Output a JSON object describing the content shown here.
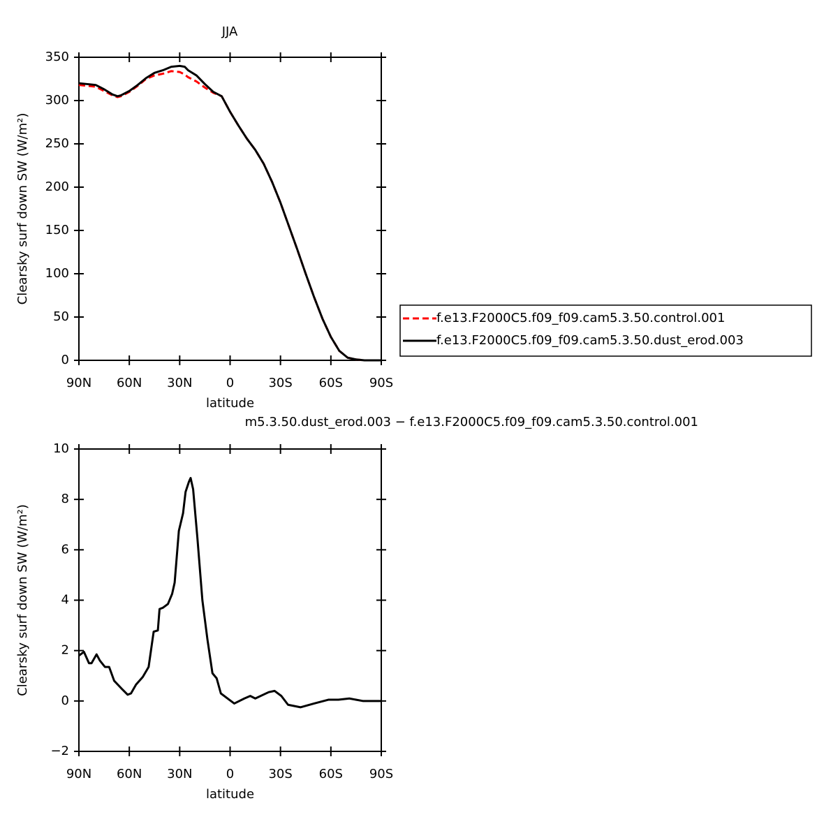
{
  "chart_data": [
    {
      "type": "line",
      "title": "JJA",
      "x_label": "latitude",
      "y_label": "Clearsky surf down SW (W/m²)",
      "x": [
        90,
        85,
        80,
        75,
        70,
        67,
        65,
        60,
        55,
        50,
        45,
        40,
        35,
        30,
        27,
        25,
        20,
        15,
        10,
        5,
        0,
        -5,
        -10,
        -15,
        -20,
        -25,
        -30,
        -35,
        -40,
        -45,
        -50,
        -55,
        -60,
        -65,
        -70,
        -75,
        -80,
        -85,
        -90
      ],
      "xlim": [
        90,
        -90
      ],
      "xticks": [
        {
          "value": 90,
          "label": "90N"
        },
        {
          "value": 60,
          "label": "60N"
        },
        {
          "value": 30,
          "label": "30N"
        },
        0,
        {
          "value": -30,
          "label": "30S"
        },
        {
          "value": -60,
          "label": "60S"
        },
        {
          "value": -90,
          "label": "90S"
        }
      ],
      "ylim": [
        0,
        350
      ],
      "yticks": [
        0,
        50,
        100,
        150,
        200,
        250,
        300,
        350
      ],
      "legend": "right",
      "series": [
        {
          "name": "f.e13.F2000C5.f09_f09.cam5.3.50.control.001",
          "color": "#ff0000",
          "linestyle": "dashed",
          "values": [
            318,
            317,
            316,
            311,
            306,
            304,
            305,
            310,
            317,
            325,
            329,
            331,
            334,
            333,
            330,
            327,
            322,
            315,
            309,
            305,
            287,
            271,
            256,
            243,
            227,
            206,
            182,
            155,
            128,
            100,
            73,
            48,
            27,
            11,
            3,
            1,
            0,
            0,
            0
          ]
        },
        {
          "name": "f.e13.F2000C5.f09_f09.cam5.3.50.dust_erod.003",
          "color": "#000000",
          "linestyle": "solid",
          "values": [
            320,
            319,
            318,
            313,
            307,
            305,
            306,
            311,
            318,
            326,
            332,
            335,
            339,
            340,
            339,
            335,
            329,
            319,
            310,
            305,
            287,
            271,
            256,
            243,
            227,
            206,
            182,
            155,
            128,
            100,
            73,
            48,
            27,
            11,
            3,
            1,
            0,
            0,
            0
          ]
        }
      ]
    },
    {
      "type": "line",
      "title": "m5.3.50.dust_erod.003 − f.e13.F2000C5.f09_f09.cam5.3.50.control.001",
      "x_label": "latitude",
      "y_label": "Clearsky surf down SW (W/m²)",
      "x": [
        90,
        87,
        84,
        82.5,
        79.5,
        77.5,
        74.5,
        72,
        69,
        64,
        61,
        59,
        56,
        52,
        48.5,
        45.5,
        43,
        42,
        40,
        37,
        34.5,
        33,
        30.5,
        28,
        26.5,
        24.5,
        23.5,
        22,
        19.5,
        16.5,
        13.5,
        10.5,
        8,
        5.5,
        0.5,
        -2.5,
        -8.5,
        -12,
        -15,
        -23,
        -26.5,
        -30.5,
        -34.5,
        -42,
        -50,
        -58.5,
        -64.5,
        -71,
        -79,
        -90
      ],
      "xlim": [
        90,
        -90
      ],
      "xticks": [
        {
          "value": 90,
          "label": "90N"
        },
        {
          "value": 60,
          "label": "60N"
        },
        {
          "value": 30,
          "label": "30N"
        },
        0,
        {
          "value": -30,
          "label": "30S"
        },
        {
          "value": -60,
          "label": "60S"
        },
        {
          "value": -90,
          "label": "90S"
        }
      ],
      "ylim": [
        -2,
        10
      ],
      "yticks": [
        {
          "value": -2,
          "label": "−2"
        },
        0,
        2,
        4,
        6,
        8,
        10
      ],
      "series": [
        {
          "color": "#000000",
          "linestyle": "solid",
          "values": [
            1.8,
            1.95,
            1.5,
            1.5,
            1.85,
            1.6,
            1.35,
            1.35,
            0.8,
            0.45,
            0.25,
            0.3,
            0.65,
            0.95,
            1.35,
            2.75,
            2.8,
            3.65,
            3.7,
            3.85,
            4.25,
            4.7,
            6.75,
            7.45,
            8.3,
            8.7,
            8.85,
            8.4,
            6.5,
            4.0,
            2.45,
            1.1,
            0.9,
            0.3,
            0.05,
            -0.1,
            0.1,
            0.2,
            0.1,
            0.35,
            0.4,
            0.2,
            -0.15,
            -0.25,
            -0.1,
            0.05,
            0.05,
            0.1,
            0,
            0
          ]
        }
      ]
    }
  ]
}
